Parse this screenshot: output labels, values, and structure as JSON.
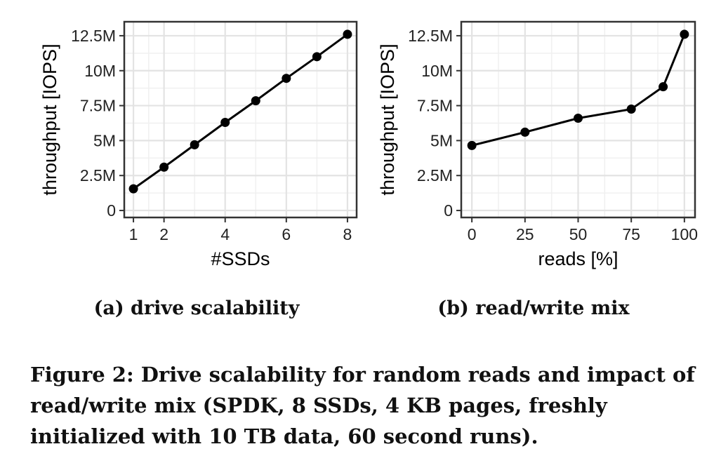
{
  "chart_data": [
    {
      "id": "a",
      "type": "line",
      "title": "",
      "xlabel": "#SSDs",
      "ylabel": "throughput [IOPS]",
      "xlim": [
        0.7,
        8.3
      ],
      "ylim": [
        -0.5,
        13.5
      ],
      "y_unit_note": "values in millions of IOPS",
      "x_ticks": [
        1,
        2,
        4,
        6,
        8
      ],
      "y_ticks": [
        0,
        2.5,
        5,
        7.5,
        10,
        12.5
      ],
      "y_tick_labels": [
        "0",
        "2.5M",
        "5M",
        "7.5M",
        "10M",
        "12.5M"
      ],
      "grid": true,
      "color": "#000000",
      "series": [
        {
          "x": [
            1,
            2,
            3,
            4,
            5,
            6,
            7,
            8
          ],
          "y": [
            1.55,
            3.1,
            4.7,
            6.3,
            7.85,
            9.45,
            11.0,
            12.6
          ]
        }
      ]
    },
    {
      "id": "b",
      "type": "line",
      "title": "",
      "xlabel": "reads [%]",
      "ylabel": "throughput [IOPS]",
      "xlim": [
        -5,
        105
      ],
      "ylim": [
        -0.5,
        13.5
      ],
      "y_unit_note": "values in millions of IOPS",
      "x_ticks": [
        0,
        25,
        50,
        75,
        100
      ],
      "y_ticks": [
        0,
        2.5,
        5,
        7.5,
        10,
        12.5
      ],
      "y_tick_labels": [
        "0",
        "2.5M",
        "5M",
        "7.5M",
        "10M",
        "12.5M"
      ],
      "grid": true,
      "color": "#000000",
      "series": [
        {
          "x": [
            0,
            25,
            50,
            75,
            90,
            100
          ],
          "y": [
            4.65,
            5.6,
            6.6,
            7.25,
            8.85,
            12.6
          ]
        }
      ]
    }
  ],
  "subcaptions": {
    "a": "(a) drive scalability",
    "b": "(b) read/write mix"
  },
  "caption": "Figure 2: Drive scalability for random reads and impact of read/write mix (SPDK, 8 SSDs, 4 KB pages, freshly initialized with 10 TB data, 60 second runs)."
}
